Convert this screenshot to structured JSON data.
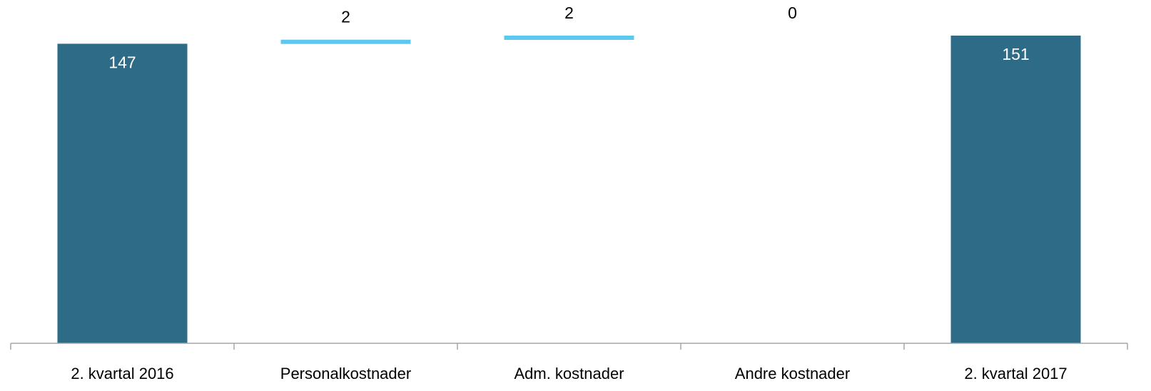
{
  "chart_data": {
    "type": "bar",
    "subtype": "waterfall",
    "categories": [
      "2. kvartal 2016",
      "Personalkostnader",
      "Adm. kostnader",
      "Andre kostnader",
      "2. kvartal 2017"
    ],
    "values": [
      147,
      2,
      2,
      0,
      151
    ],
    "kinds": [
      "total",
      "delta",
      "delta",
      "delta",
      "total"
    ],
    "value_labels": [
      "147",
      "2",
      "2",
      "0",
      "151"
    ],
    "title": "",
    "xlabel": "",
    "ylabel": "",
    "ylim": [
      0,
      151
    ],
    "grid": false,
    "legend": "none",
    "colors": {
      "total": "#2e6b87",
      "delta": "#5bc8ef",
      "axis": "#a6a6a6",
      "label_dark": "#000000",
      "label_light": "#ffffff"
    }
  }
}
